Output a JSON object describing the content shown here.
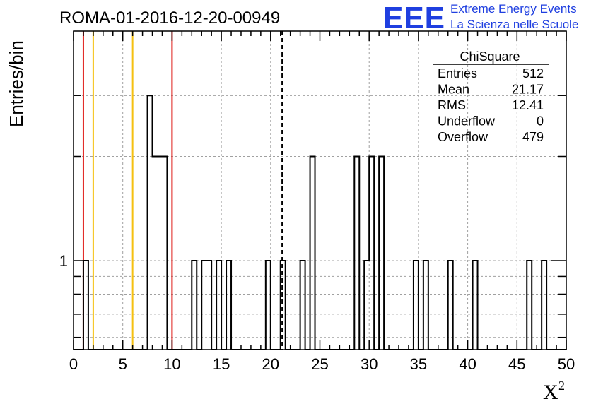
{
  "header": {
    "run_title": "ROMA-01-2016-12-20-00949",
    "logo_text": "EEE",
    "logo_line1": "Extreme Energy Events",
    "logo_line2": "La Scienza nelle Scuole"
  },
  "stats": {
    "title": "ChiSquare",
    "rows": [
      {
        "label": "Entries",
        "value": "512"
      },
      {
        "label": "Mean",
        "value": "21.17"
      },
      {
        "label": "RMS",
        "value": "12.41"
      },
      {
        "label": "Underflow",
        "value": "0"
      },
      {
        "label": "Overflow",
        "value": "479"
      }
    ]
  },
  "chart_data": {
    "type": "histogram",
    "title": "ROMA-01-2016-12-20-00949",
    "xlabel": "X",
    "xlabel_superscript": "2",
    "ylabel": "Entries/bin",
    "y_scale": "log",
    "xlim": [
      0,
      50
    ],
    "x_ticks": [
      "0",
      "5",
      "10",
      "15",
      "20",
      "25",
      "30",
      "35",
      "40",
      "45",
      "50"
    ],
    "y_tick_labels": [
      {
        "value": 1,
        "label": "1"
      }
    ],
    "grid": true,
    "bin_width": 0.5,
    "bins": [
      {
        "x0": 1.0,
        "count": 1
      },
      {
        "x0": 7.5,
        "count": 3
      },
      {
        "x0": 8.0,
        "count": 2
      },
      {
        "x0": 8.5,
        "count": 2
      },
      {
        "x0": 9.0,
        "count": 2
      },
      {
        "x0": 12.0,
        "count": 1
      },
      {
        "x0": 13.0,
        "count": 1
      },
      {
        "x0": 13.5,
        "count": 1
      },
      {
        "x0": 14.5,
        "count": 1
      },
      {
        "x0": 15.5,
        "count": 1
      },
      {
        "x0": 19.5,
        "count": 1
      },
      {
        "x0": 21.0,
        "count": 1
      },
      {
        "x0": 23.0,
        "count": 1
      },
      {
        "x0": 24.0,
        "count": 2
      },
      {
        "x0": 28.5,
        "count": 2
      },
      {
        "x0": 29.5,
        "count": 1
      },
      {
        "x0": 30.0,
        "count": 2
      },
      {
        "x0": 31.0,
        "count": 2
      },
      {
        "x0": 34.5,
        "count": 1
      },
      {
        "x0": 35.5,
        "count": 1
      },
      {
        "x0": 38.0,
        "count": 1
      },
      {
        "x0": 40.5,
        "count": 1
      },
      {
        "x0": 46.0,
        "count": 1
      },
      {
        "x0": 47.5,
        "count": 1
      }
    ],
    "reference_lines": [
      {
        "x": 1.0,
        "color": "#e0201c",
        "style": "solid"
      },
      {
        "x": 2.0,
        "color": "#f5c010",
        "style": "solid"
      },
      {
        "x": 6.0,
        "color": "#f5c010",
        "style": "solid"
      },
      {
        "x": 10.0,
        "color": "#e0201c",
        "style": "solid"
      },
      {
        "x": 21.17,
        "color": "#000000",
        "style": "dashed"
      }
    ],
    "colors": {
      "histogram": "#000000",
      "grid": "#a0a0a0",
      "logo": "#1f3fe0"
    }
  }
}
